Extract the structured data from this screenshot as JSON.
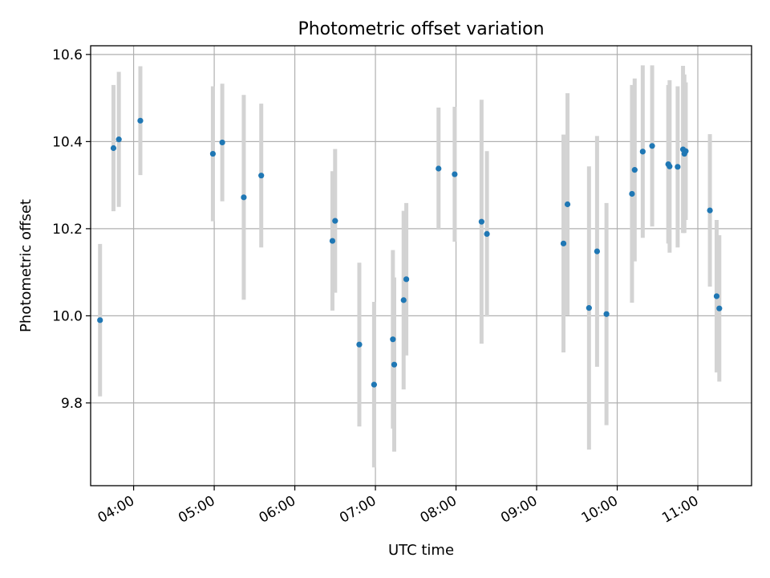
{
  "chart_data": {
    "type": "scatter",
    "title": "Photometric offset variation",
    "xlabel": "UTC time",
    "ylabel": "Photometric offset",
    "xlim": [
      "03:28",
      "11:40"
    ],
    "ylim": [
      9.61,
      10.62
    ],
    "x_ticks": [
      "04:00",
      "05:00",
      "06:00",
      "07:00",
      "08:00",
      "09:00",
      "10:00",
      "11:00"
    ],
    "y_ticks": [
      9.8,
      10.0,
      10.2,
      10.4,
      10.6
    ],
    "grid": true,
    "series": [
      {
        "marker_color": "#1f77b4",
        "errorbar_color": "#d3d3d3",
        "points": [
          {
            "x": "03:35",
            "y": 9.99,
            "err": 0.175
          },
          {
            "x": "03:45",
            "y": 10.385,
            "err": 0.145
          },
          {
            "x": "03:49",
            "y": 10.405,
            "err": 0.155
          },
          {
            "x": "04:05",
            "y": 10.448,
            "err": 0.125
          },
          {
            "x": "04:59",
            "y": 10.372,
            "err": 0.155
          },
          {
            "x": "05:06",
            "y": 10.398,
            "err": 0.135
          },
          {
            "x": "05:22",
            "y": 10.272,
            "err": 0.235
          },
          {
            "x": "05:35",
            "y": 10.322,
            "err": 0.165
          },
          {
            "x": "06:28",
            "y": 10.172,
            "err": 0.16
          },
          {
            "x": "06:30",
            "y": 10.218,
            "err": 0.165
          },
          {
            "x": "06:48",
            "y": 9.934,
            "err": 0.188
          },
          {
            "x": "06:59",
            "y": 9.842,
            "err": 0.19
          },
          {
            "x": "07:13",
            "y": 9.946,
            "err": 0.205
          },
          {
            "x": "07:14",
            "y": 9.888,
            "err": 0.2
          },
          {
            "x": "07:21",
            "y": 10.036,
            "err": 0.205
          },
          {
            "x": "07:23",
            "y": 10.084,
            "err": 0.175
          },
          {
            "x": "07:47",
            "y": 10.338,
            "err": 0.14
          },
          {
            "x": "07:59",
            "y": 10.325,
            "err": 0.155
          },
          {
            "x": "08:19",
            "y": 10.216,
            "err": 0.28
          },
          {
            "x": "08:23",
            "y": 10.188,
            "err": 0.19
          },
          {
            "x": "09:20",
            "y": 10.166,
            "err": 0.25
          },
          {
            "x": "09:23",
            "y": 10.256,
            "err": 0.255
          },
          {
            "x": "09:39",
            "y": 10.018,
            "err": 0.325
          },
          {
            "x": "09:45",
            "y": 10.148,
            "err": 0.265
          },
          {
            "x": "09:52",
            "y": 10.004,
            "err": 0.255
          },
          {
            "x": "10:11",
            "y": 10.28,
            "err": 0.25
          },
          {
            "x": "10:13",
            "y": 10.335,
            "err": 0.21
          },
          {
            "x": "10:19",
            "y": 10.377,
            "err": 0.198
          },
          {
            "x": "10:26",
            "y": 10.39,
            "err": 0.185
          },
          {
            "x": "10:38",
            "y": 10.348,
            "err": 0.182
          },
          {
            "x": "10:39",
            "y": 10.343,
            "err": 0.198
          },
          {
            "x": "10:45",
            "y": 10.342,
            "err": 0.185
          },
          {
            "x": "10:49",
            "y": 10.382,
            "err": 0.192
          },
          {
            "x": "10:50",
            "y": 10.372,
            "err": 0.182
          },
          {
            "x": "10:51",
            "y": 10.378,
            "err": 0.158
          },
          {
            "x": "11:09",
            "y": 10.242,
            "err": 0.175
          },
          {
            "x": "11:14",
            "y": 10.045,
            "err": 0.175
          },
          {
            "x": "11:16",
            "y": 10.017,
            "err": 0.168
          }
        ]
      }
    ]
  }
}
